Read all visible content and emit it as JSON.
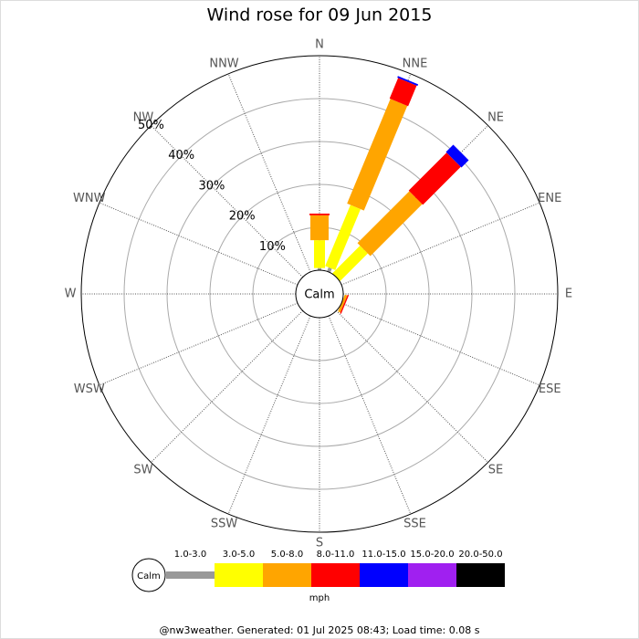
{
  "chart_data": {
    "type": "windrose",
    "title": "Wind rose for 09 Jun 2015",
    "calm_label": "Calm",
    "unit_label": "mph",
    "footer": "@nw3weather.  Generated: 01 Jul 2025 08:43; Load time: 0.08 s",
    "categories": [
      "N",
      "NNE",
      "NE",
      "ENE",
      "E",
      "ESE",
      "SE",
      "SSE",
      "S",
      "SSW",
      "SW",
      "WSW",
      "W",
      "WNW",
      "NW",
      "NNW"
    ],
    "rlim": [
      0,
      50
    ],
    "rticks": [
      {
        "value": 10,
        "label": "10%"
      },
      {
        "value": 20,
        "label": "20%"
      },
      {
        "value": 30,
        "label": "30%"
      },
      {
        "value": 40,
        "label": "40%"
      },
      {
        "value": 50,
        "label": "50%"
      }
    ],
    "series": [
      {
        "name": "1.0-3.0",
        "color": "#999999",
        "values": [
          0.5,
          1.0,
          0,
          0,
          0,
          0,
          0,
          0,
          0,
          0,
          0,
          0,
          0,
          0,
          0,
          0
        ]
      },
      {
        "name": "3.0-5.0",
        "color": "#ffff00",
        "values": [
          6.5,
          15.4,
          9.1,
          0,
          0,
          0,
          0,
          0,
          0,
          0,
          0,
          0,
          0,
          0,
          0,
          0
        ]
      },
      {
        "name": "5.0-8.0",
        "color": "#ffa500",
        "values": [
          5.8,
          26.4,
          17.1,
          0,
          0,
          0.6,
          0,
          0,
          0,
          0,
          0,
          0,
          0,
          0,
          0,
          0
        ]
      },
      {
        "name": "8.0-11.0",
        "color": "#ff0000",
        "values": [
          0.4,
          5.2,
          12.5,
          0,
          0,
          0.3,
          0,
          0,
          0,
          0,
          0,
          0,
          0,
          0,
          0,
          0
        ]
      },
      {
        "name": "11.0-15.0",
        "color": "#0000ff",
        "values": [
          0,
          0.4,
          2.4,
          0,
          0,
          0,
          0,
          0,
          0,
          0,
          0,
          0,
          0,
          0,
          0,
          0
        ]
      },
      {
        "name": "15.0-20.0",
        "color": "#a020f0",
        "values": [
          0,
          0,
          0,
          0,
          0,
          0,
          0,
          0,
          0,
          0,
          0,
          0,
          0,
          0,
          0,
          0
        ]
      },
      {
        "name": "20.0-50.0",
        "color": "#000000",
        "values": [
          0,
          0,
          0,
          0,
          0,
          0,
          0,
          0,
          0,
          0,
          0,
          0,
          0,
          0,
          0,
          0
        ]
      }
    ]
  }
}
